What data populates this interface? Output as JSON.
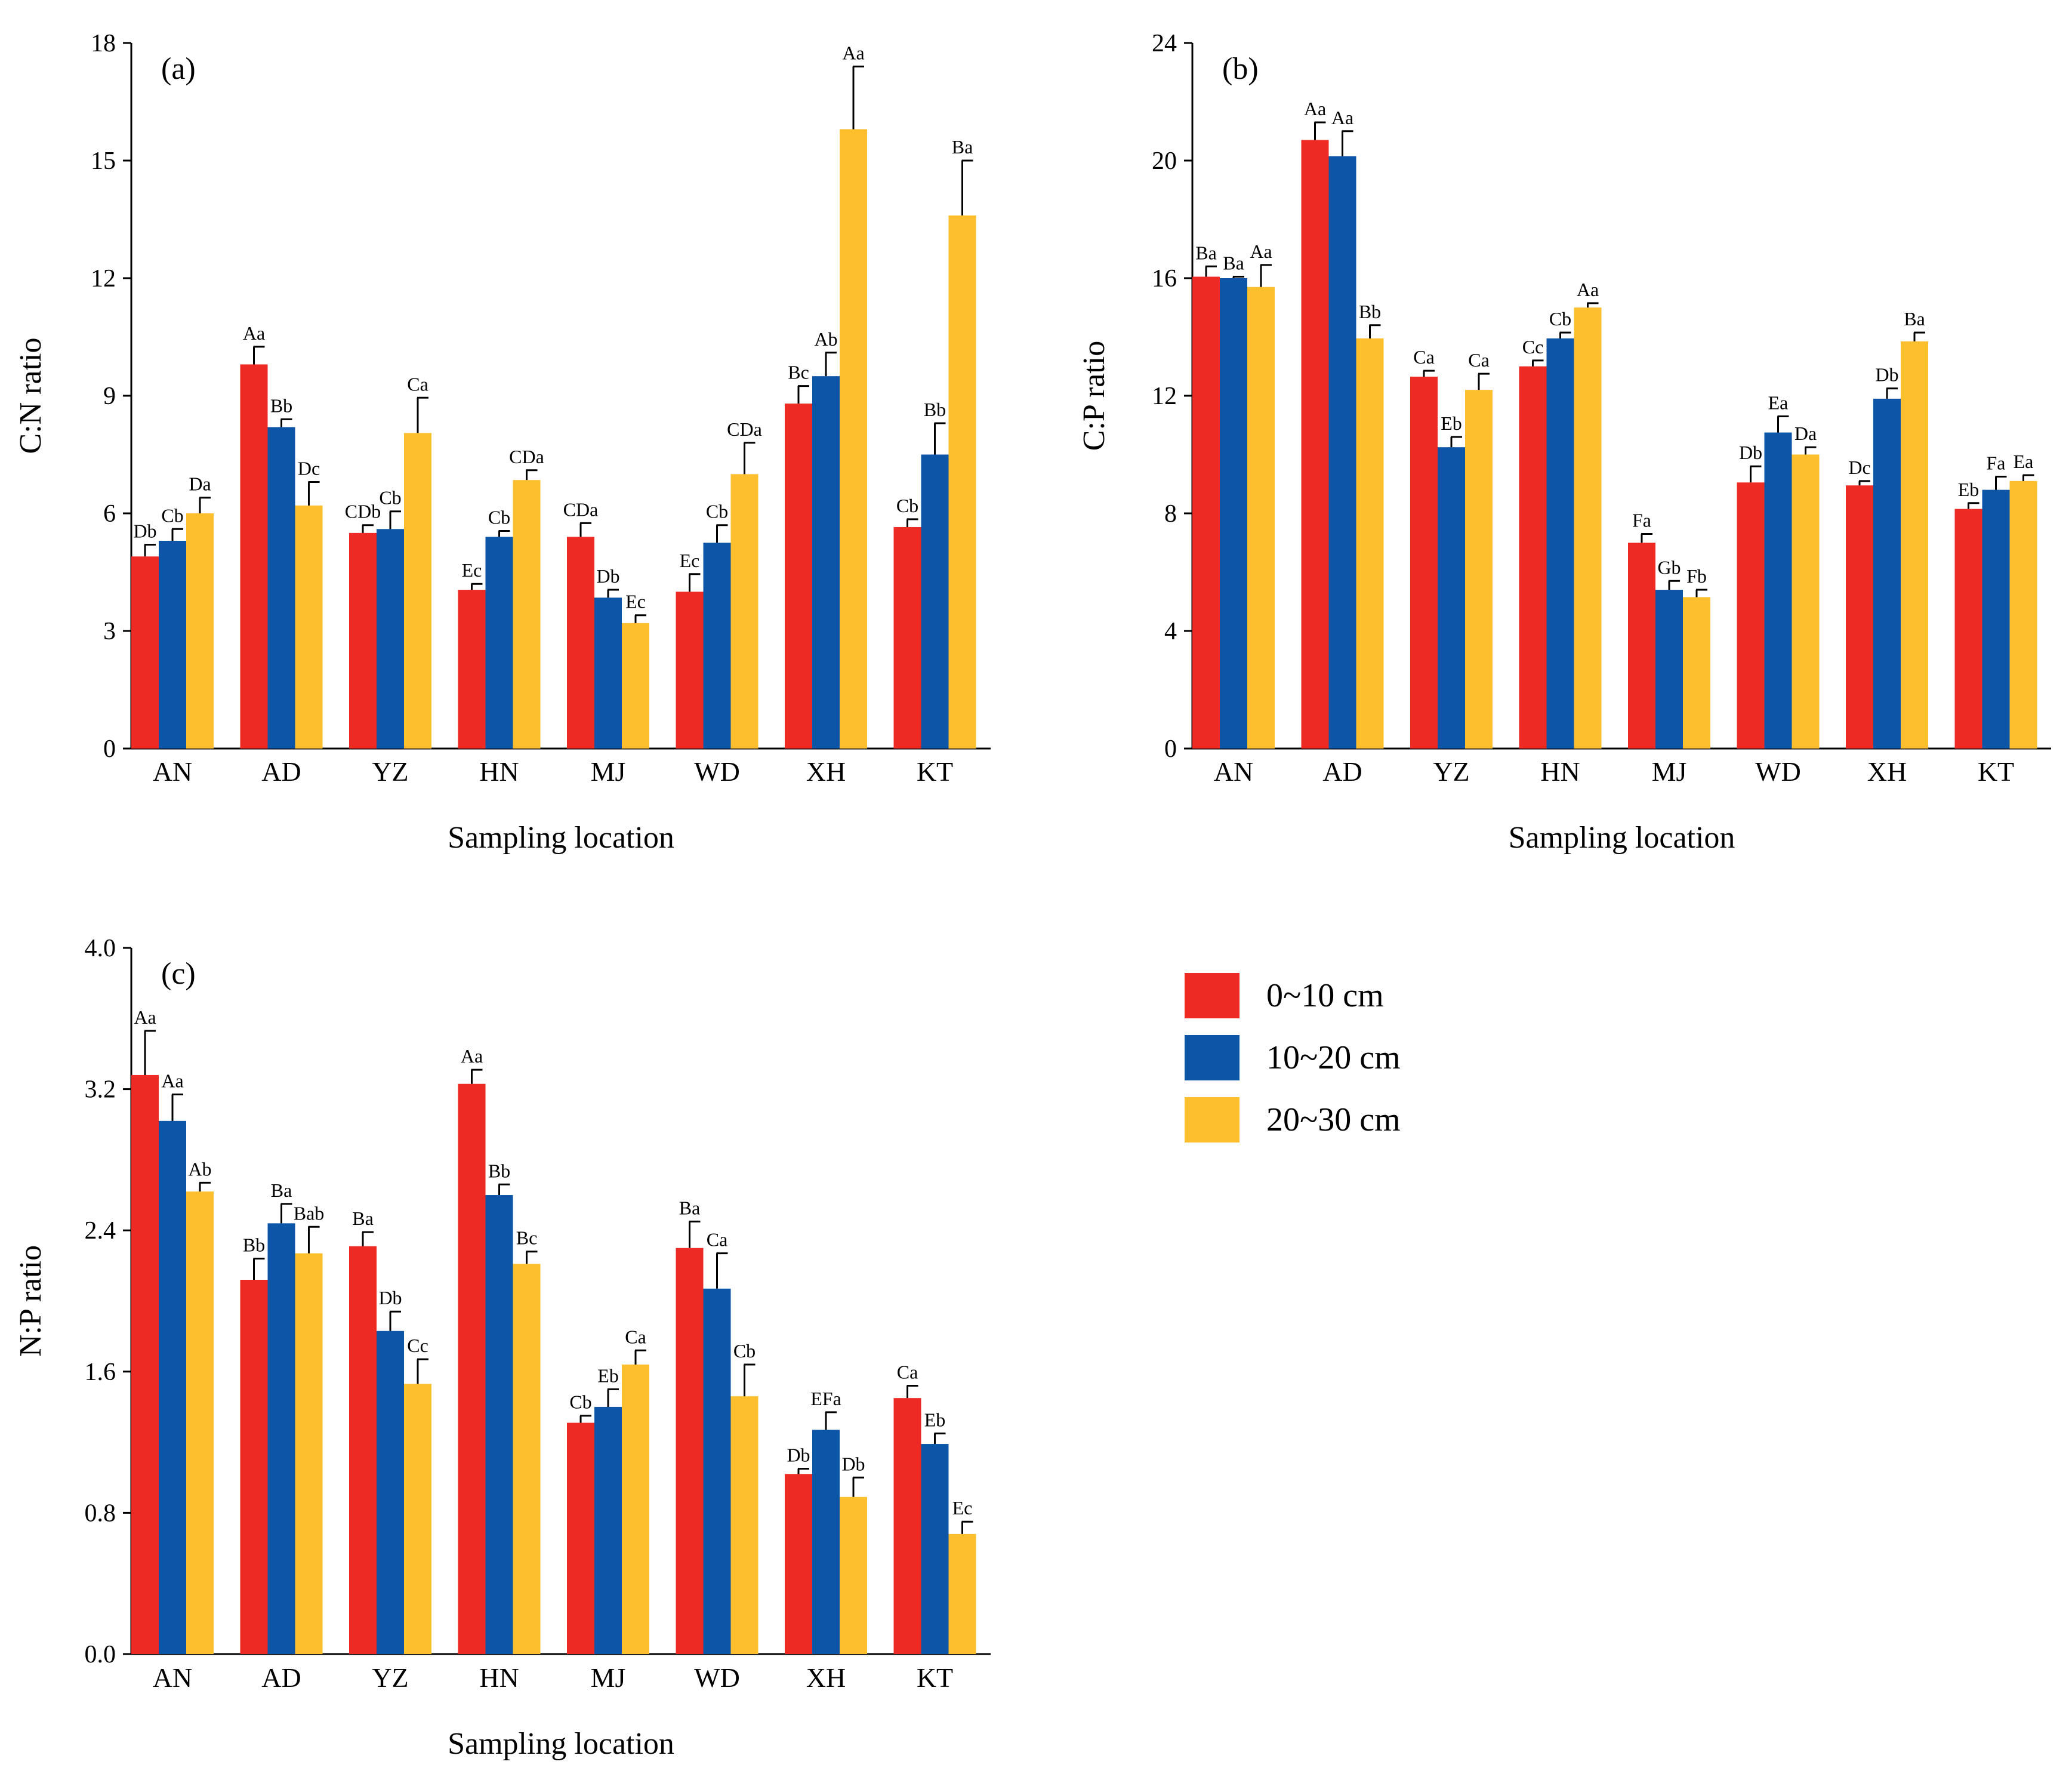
{
  "legend": [
    {
      "label": "0~10 cm",
      "color": "#EE2A24"
    },
    {
      "label": "10~20 cm",
      "color": "#0D55A6"
    },
    {
      "label": "20~30 cm",
      "color": "#FDBF2E"
    }
  ],
  "chart_data": [
    {
      "type": "bar",
      "panel": "(a)",
      "ylabel": "C:N ratio",
      "xlabel": "Sampling location",
      "ylim": [
        0,
        18
      ],
      "yticks": [
        "0",
        "3",
        "6",
        "9",
        "12",
        "15",
        "18"
      ],
      "categories": [
        "AN",
        "AD",
        "YZ",
        "HN",
        "MJ",
        "WD",
        "XH",
        "KT"
      ],
      "series": [
        {
          "name": "0~10 cm",
          "values": [
            4.9,
            9.8,
            5.5,
            4.05,
            5.4,
            4.0,
            8.8,
            5.65
          ],
          "errors": [
            0.3,
            0.45,
            0.2,
            0.15,
            0.35,
            0.45,
            0.45,
            0.2
          ],
          "labels": [
            "Db",
            "Aa",
            "CDb",
            "Ec",
            "CDa",
            "Ec",
            "Bc",
            "Cb"
          ]
        },
        {
          "name": "10~20 cm",
          "values": [
            5.3,
            8.2,
            5.6,
            5.4,
            3.85,
            5.25,
            9.5,
            7.5
          ],
          "errors": [
            0.3,
            0.2,
            0.45,
            0.15,
            0.2,
            0.45,
            0.6,
            0.8
          ],
          "labels": [
            "Cb",
            "Bb",
            "Cb",
            "Cb",
            "Db",
            "Cb",
            "Ab",
            "Bb"
          ]
        },
        {
          "name": "20~30 cm",
          "values": [
            6.0,
            6.2,
            8.05,
            6.85,
            3.2,
            7.0,
            15.8,
            13.6
          ],
          "errors": [
            0.4,
            0.6,
            0.9,
            0.25,
            0.2,
            0.8,
            1.6,
            1.4
          ],
          "labels": [
            "Da",
            "Dc",
            "Ca",
            "CDa",
            "Ec",
            "CDa",
            "Aa",
            "Ba"
          ]
        }
      ]
    },
    {
      "type": "bar",
      "panel": "(b)",
      "ylabel": "C:P ratio",
      "xlabel": "Sampling location",
      "ylim": [
        0,
        24
      ],
      "yticks": [
        "0",
        "4",
        "8",
        "12",
        "16",
        "20",
        "24"
      ],
      "categories": [
        "AN",
        "AD",
        "YZ",
        "HN",
        "MJ",
        "WD",
        "XH",
        "KT"
      ],
      "series": [
        {
          "name": "0~10 cm",
          "values": [
            16.05,
            20.7,
            12.65,
            13.0,
            7.0,
            9.05,
            8.95,
            8.15
          ],
          "errors": [
            0.35,
            0.6,
            0.2,
            0.2,
            0.3,
            0.55,
            0.15,
            0.2
          ],
          "labels": [
            "Ba",
            "Aa",
            "Ca",
            "Cc",
            "Fa",
            "Db",
            "Dc",
            "Eb"
          ]
        },
        {
          "name": "10~20 cm",
          "values": [
            16.0,
            20.15,
            10.25,
            13.95,
            5.4,
            10.75,
            11.9,
            8.8
          ],
          "errors": [
            0.05,
            0.85,
            0.35,
            0.2,
            0.3,
            0.55,
            0.35,
            0.45
          ],
          "labels": [
            "Ba",
            "Aa",
            "Eb",
            "Cb",
            "Gb",
            "Ea",
            "Db",
            "Fa"
          ]
        },
        {
          "name": "20~30 cm",
          "values": [
            15.7,
            13.95,
            12.2,
            15.0,
            5.15,
            10.0,
            13.85,
            9.1
          ],
          "errors": [
            0.75,
            0.45,
            0.55,
            0.15,
            0.25,
            0.25,
            0.3,
            0.2
          ],
          "labels": [
            "Aa",
            "Bb",
            "Ca",
            "Aa",
            "Fb",
            "Da",
            "Ba",
            "Ea"
          ]
        }
      ]
    },
    {
      "type": "bar",
      "panel": "(c)",
      "ylabel": "N:P ratio",
      "xlabel": "Sampling location",
      "ylim": [
        0,
        4
      ],
      "yticks": [
        "0.0",
        "0.8",
        "1.6",
        "2.4",
        "3.2",
        "4.0"
      ],
      "categories": [
        "AN",
        "AD",
        "YZ",
        "HN",
        "MJ",
        "WD",
        "XH",
        "KT"
      ],
      "series": [
        {
          "name": "0~10 cm",
          "values": [
            3.28,
            2.12,
            2.31,
            3.23,
            1.31,
            2.3,
            1.02,
            1.45
          ],
          "errors": [
            0.25,
            0.12,
            0.08,
            0.08,
            0.04,
            0.15,
            0.03,
            0.07
          ],
          "labels": [
            "Aa",
            "Bb",
            "Ba",
            "Aa",
            "Cb",
            "Ba",
            "Db",
            "Ca"
          ]
        },
        {
          "name": "10~20 cm",
          "values": [
            3.02,
            2.44,
            1.83,
            2.6,
            1.4,
            2.07,
            1.27,
            1.19
          ],
          "errors": [
            0.15,
            0.11,
            0.11,
            0.06,
            0.1,
            0.2,
            0.1,
            0.06
          ],
          "labels": [
            "Aa",
            "Ba",
            "Db",
            "Bb",
            "Eb",
            "Ca",
            "EFa",
            "Eb"
          ]
        },
        {
          "name": "20~30 cm",
          "values": [
            2.62,
            2.27,
            1.53,
            2.21,
            1.64,
            1.46,
            0.89,
            0.68
          ],
          "errors": [
            0.05,
            0.15,
            0.14,
            0.07,
            0.08,
            0.18,
            0.11,
            0.07
          ],
          "labels": [
            "Ab",
            "Bab",
            "Cc",
            "Bc",
            "Ca",
            "Cb",
            "Db",
            "Ec"
          ]
        }
      ]
    }
  ]
}
